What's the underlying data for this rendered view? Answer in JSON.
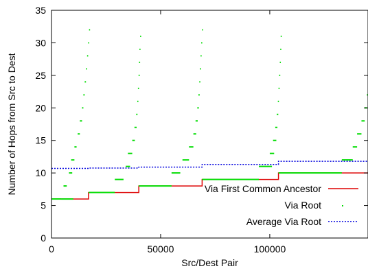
{
  "chart_data": {
    "type": "line",
    "title": "",
    "xlabel": "Src/Dest Pair",
    "ylabel": "Number of Hops from Src to Dest",
    "xlim": [
      0,
      145000
    ],
    "ylim": [
      0,
      35
    ],
    "xticks": [
      0,
      50000,
      100000
    ],
    "xtick_labels": [
      "0",
      "50000",
      "100000"
    ],
    "yticks": [
      0,
      5,
      10,
      15,
      20,
      25,
      30,
      35
    ],
    "ytick_labels": [
      "0",
      "5",
      "10",
      "15",
      "20",
      "25",
      "30",
      "35"
    ],
    "grid": false,
    "legend_position": "bottom-right",
    "series": [
      {
        "name": "Via First Common Ancestor",
        "color": "#dd0000",
        "style": "solid",
        "kind": "step",
        "points": [
          [
            0,
            6
          ],
          [
            17000,
            6
          ],
          [
            17000,
            7
          ],
          [
            40000,
            7
          ],
          [
            40000,
            8
          ],
          [
            69000,
            8
          ],
          [
            69000,
            9
          ],
          [
            104000,
            9
          ],
          [
            104000,
            10
          ],
          [
            145000,
            10
          ]
        ]
      },
      {
        "name": "Via Root",
        "color": "#00dd00",
        "style": "dots",
        "kind": "segments",
        "segments": [
          [
            0,
            4500,
            6
          ],
          [
            4500,
            10000,
            6
          ],
          [
            5500,
            7000,
            8
          ],
          [
            8000,
            9500,
            10
          ],
          [
            9000,
            10500,
            12
          ],
          [
            10500,
            11500,
            14
          ],
          [
            12000,
            13000,
            16
          ],
          [
            13000,
            14000,
            18
          ],
          [
            14000,
            14600,
            20
          ],
          [
            14600,
            15200,
            22
          ],
          [
            15200,
            15800,
            24
          ],
          [
            15800,
            16300,
            26
          ],
          [
            16300,
            16800,
            28
          ],
          [
            16800,
            17100,
            30
          ],
          [
            17200,
            17400,
            32
          ],
          [
            17000,
            29000,
            7
          ],
          [
            29000,
            33000,
            9
          ],
          [
            34000,
            36000,
            11
          ],
          [
            35000,
            37000,
            13
          ],
          [
            37000,
            38200,
            15
          ],
          [
            38000,
            39000,
            17
          ],
          [
            38800,
            39400,
            19
          ],
          [
            39300,
            39800,
            21
          ],
          [
            39600,
            40100,
            23
          ],
          [
            39900,
            40400,
            25
          ],
          [
            40100,
            40600,
            27
          ],
          [
            40300,
            40700,
            29
          ],
          [
            40600,
            40900,
            31
          ],
          [
            40000,
            55000,
            8
          ],
          [
            55000,
            59000,
            10
          ],
          [
            60000,
            63000,
            12
          ],
          [
            63000,
            65000,
            14
          ],
          [
            65000,
            66300,
            16
          ],
          [
            66000,
            67000,
            18
          ],
          [
            66800,
            67500,
            20
          ],
          [
            67300,
            67900,
            22
          ],
          [
            67700,
            68200,
            24
          ],
          [
            68000,
            68500,
            26
          ],
          [
            68300,
            68700,
            28
          ],
          [
            68600,
            69000,
            30
          ],
          [
            69000,
            69300,
            32
          ],
          [
            69000,
            95000,
            9
          ],
          [
            95000,
            101000,
            11
          ],
          [
            100000,
            102000,
            13
          ],
          [
            101500,
            103000,
            15
          ],
          [
            102500,
            103500,
            17
          ],
          [
            103200,
            103900,
            19
          ],
          [
            103700,
            104200,
            21
          ],
          [
            104000,
            104500,
            23
          ],
          [
            104300,
            104800,
            25
          ],
          [
            104600,
            105000,
            27
          ],
          [
            104800,
            105100,
            29
          ],
          [
            105000,
            105300,
            31
          ],
          [
            104000,
            133000,
            10
          ],
          [
            133000,
            138000,
            12
          ],
          [
            138000,
            140000,
            14
          ],
          [
            140000,
            142000,
            16
          ],
          [
            142000,
            143500,
            18
          ],
          [
            143500,
            144500,
            20
          ],
          [
            144500,
            145000,
            22
          ]
        ]
      },
      {
        "name": "Average Via Root",
        "color": "#0000dd",
        "style": "dotted",
        "kind": "step",
        "points": [
          [
            0,
            10.7
          ],
          [
            17000,
            10.7
          ],
          [
            17000,
            10.75
          ],
          [
            40000,
            10.75
          ],
          [
            40000,
            10.9
          ],
          [
            69000,
            10.9
          ],
          [
            69000,
            11.3
          ],
          [
            104000,
            11.3
          ],
          [
            104000,
            11.8
          ],
          [
            145000,
            11.8
          ]
        ]
      }
    ]
  }
}
